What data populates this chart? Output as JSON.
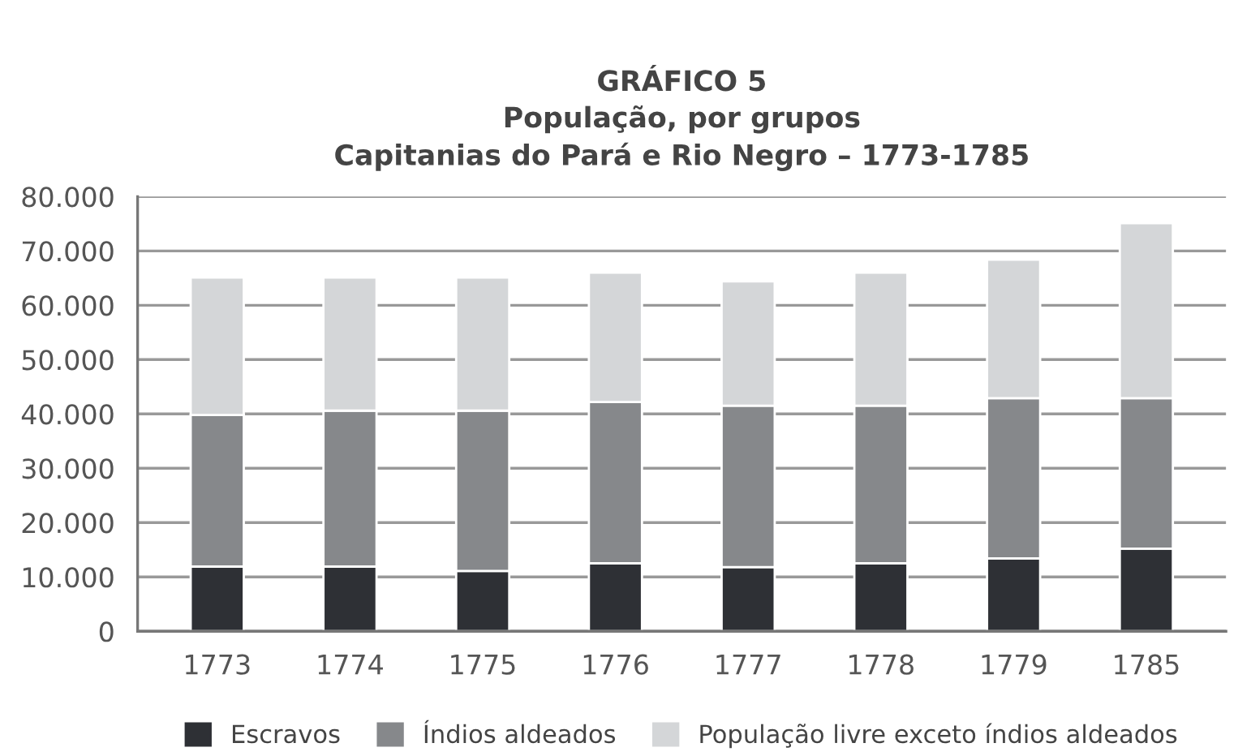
{
  "chart_data": {
    "type": "bar",
    "stacked": true,
    "title": "GRÁFICO 5\nPopulação, por grupos\nCapitanias do Pará e Rio Negro – 1773-1785",
    "categories": [
      "1773",
      "1774",
      "1775",
      "1776",
      "1777",
      "1778",
      "1779",
      "1785"
    ],
    "series": [
      {
        "name": "Escravos",
        "color": "#2e3035",
        "values": [
          11900,
          11900,
          11100,
          12500,
          11800,
          12500,
          13400,
          15200
        ]
      },
      {
        "name": "Índios aldeados",
        "color": "#86888b",
        "values": [
          27900,
          28700,
          29500,
          29700,
          29700,
          29000,
          29500,
          27700
        ]
      },
      {
        "name": "População livre exceto índios aldeados",
        "color": "#d4d6d8",
        "values": [
          25300,
          24500,
          24500,
          23800,
          22900,
          24500,
          25500,
          32200
        ]
      }
    ],
    "ylim": [
      0,
      80000
    ],
    "yticks": [
      0,
      {
        "value": 10000,
        "label": "10.000"
      },
      {
        "value": 20000,
        "label": "20.000"
      },
      {
        "value": 30000,
        "label": "30.000"
      },
      {
        "value": 40000,
        "label": "40.000"
      },
      {
        "value": 50000,
        "label": "50.000"
      },
      {
        "value": 60000,
        "label": "60.000"
      },
      {
        "value": 70000,
        "label": "70.000"
      },
      {
        "value": 80000,
        "label": "80.000"
      }
    ],
    "grid": "y",
    "legend": "bottom"
  }
}
